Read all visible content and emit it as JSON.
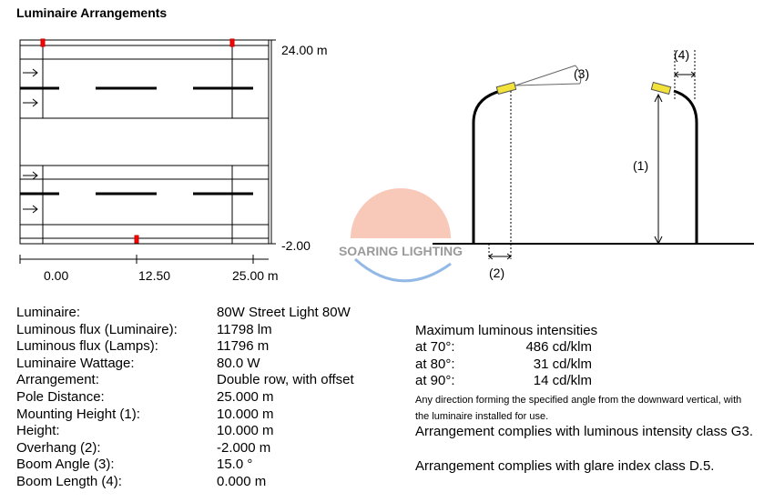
{
  "title": "Luminaire Arrangements",
  "plan": {
    "y_labels": [
      "24.00 m",
      "-2.00"
    ],
    "x_labels": [
      "0.00",
      "12.50",
      "25.00 m"
    ]
  },
  "pole_labels": [
    "(1)",
    "(2)",
    "(3)",
    "(4)"
  ],
  "watermark": "SOARING LIGHTING",
  "specs": [
    [
      "Luminaire:",
      "80W Street Light 80W"
    ],
    [
      "Luminous flux (Luminaire):",
      "11798 lm"
    ],
    [
      "Luminous flux (Lamps):",
      "11796 m"
    ],
    [
      "Luminaire Wattage:",
      "80.0 W"
    ],
    [
      "Arrangement:",
      "Double row, with offset"
    ],
    [
      "Pole Distance:",
      "25.000 m"
    ],
    [
      "Mounting Height (1):",
      "10.000 m"
    ],
    [
      "Height:",
      "10.000 m"
    ],
    [
      "Overhang (2):",
      "-2.000 m"
    ],
    [
      "Boom Angle (3):",
      "15.0 °"
    ],
    [
      "Boom Length (4):",
      "0.000 m"
    ]
  ],
  "intensities": {
    "heading": "Maximum luminous intensities",
    "rows": [
      [
        "at 70°:",
        "486 cd/klm"
      ],
      [
        "at 80°:",
        "31 cd/klm"
      ],
      [
        "at 90°:",
        "14 cd/klm"
      ]
    ],
    "note": [
      "Any direction forming the specified angle from the downward vertical, with",
      "the luminaire installed for use."
    ]
  },
  "compliance": [
    "Arrangement complies with luminous intensity class G3.",
    "Arrangement complies with glare index class D.5."
  ]
}
